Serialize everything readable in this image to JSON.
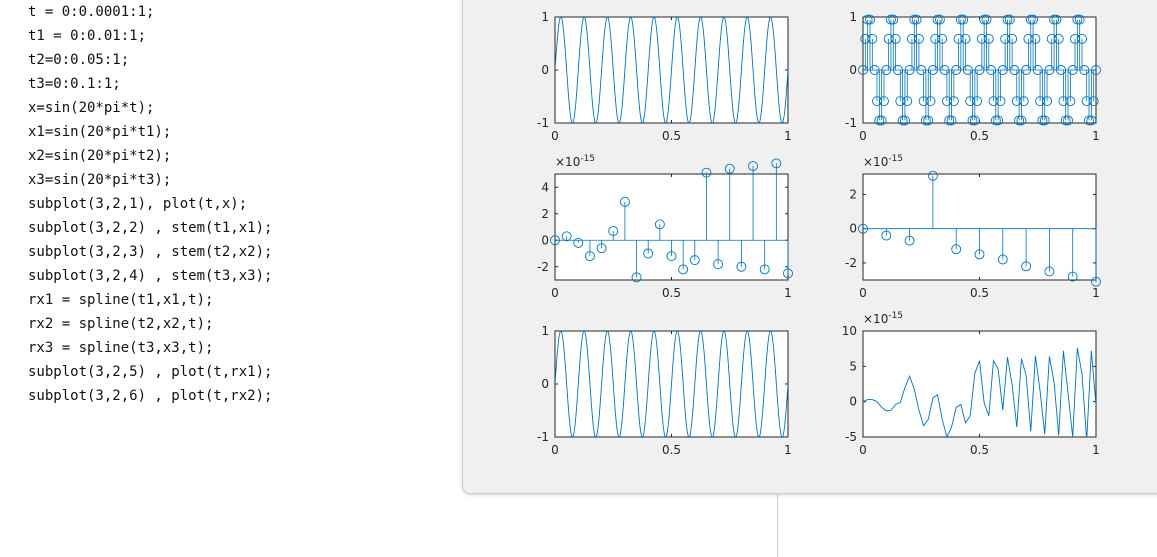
{
  "editor": {
    "lines": [
      "t = 0:0.0001:1;",
      "t1 = 0:0.01:1;",
      "t2=0:0.05:1;",
      "t3=0:0.1:1;",
      "x=sin(20*pi*t);",
      "x1=sin(20*pi*t1);",
      "x2=sin(20*pi*t2);",
      "x3=sin(20*pi*t3);",
      "subplot(3,2,1), plot(t,x);",
      "subplot(3,2,2) , stem(t1,x1);",
      "subplot(3,2,3) , stem(t2,x2);",
      "subplot(3,2,4) , stem(t3,x3);",
      "rx1 = spline(t1,x1,t);",
      "rx2 = spline(t2,x2,t);",
      "rx3 = spline(t3,x3,t);",
      "subplot(3,2,5) , plot(t,rx1);",
      "subplot(3,2,6) , plot(t,rx2);"
    ]
  },
  "figure": {
    "line_color": "#0072bd",
    "axes_background": "#ffffff",
    "window_background": "#f0f0f0"
  },
  "chart_data": [
    {
      "id": "plot1",
      "type": "line",
      "function": "sin(20*pi*x)",
      "x": {
        "start": 0,
        "end": 1,
        "step": 0.0001
      },
      "xlim": [
        0,
        1
      ],
      "ylim": [
        -1,
        1
      ],
      "xticks": [
        0,
        0.5,
        1
      ],
      "xticklabels": [
        "0",
        "0.5",
        "1"
      ],
      "yticks": [
        -1,
        0,
        1
      ],
      "yticklabels": [
        "-1",
        "0",
        "1"
      ],
      "exponent": ""
    },
    {
      "id": "plot2",
      "type": "stem",
      "x": [
        0,
        0.01,
        0.02,
        0.03,
        0.04,
        0.05,
        0.06,
        0.07,
        0.08,
        0.09,
        0.1,
        0.11,
        0.12,
        0.13,
        0.14,
        0.15,
        0.16,
        0.17,
        0.18,
        0.19,
        0.2,
        0.21,
        0.22,
        0.23,
        0.24,
        0.25,
        0.26,
        0.27,
        0.28,
        0.29,
        0.3,
        0.31,
        0.32,
        0.33,
        0.34,
        0.35,
        0.36,
        0.37,
        0.38,
        0.39,
        0.4,
        0.41,
        0.42,
        0.43,
        0.44,
        0.45,
        0.46,
        0.47,
        0.48,
        0.49,
        0.5,
        0.51,
        0.52,
        0.53,
        0.54,
        0.55,
        0.56,
        0.57,
        0.58,
        0.59,
        0.6,
        0.61,
        0.62,
        0.63,
        0.64,
        0.65,
        0.66,
        0.67,
        0.68,
        0.69,
        0.7,
        0.71,
        0.72,
        0.73,
        0.74,
        0.75,
        0.76,
        0.77,
        0.78,
        0.79,
        0.8,
        0.81,
        0.82,
        0.83,
        0.84,
        0.85,
        0.86,
        0.87,
        0.88,
        0.89,
        0.9,
        0.91,
        0.92,
        0.93,
        0.94,
        0.95,
        0.96,
        0.97,
        0.98,
        0.99,
        1
      ],
      "y": [
        0,
        0.5878,
        0.9511,
        0.9511,
        0.5878,
        0,
        -0.5878,
        -0.9511,
        -0.9511,
        -0.5878,
        0,
        0.5878,
        0.9511,
        0.9511,
        0.5878,
        0,
        -0.5878,
        -0.9511,
        -0.9511,
        -0.5878,
        0,
        0.5878,
        0.9511,
        0.9511,
        0.5878,
        0,
        -0.5878,
        -0.9511,
        -0.9511,
        -0.5878,
        0,
        0.5878,
        0.9511,
        0.9511,
        0.5878,
        0,
        -0.5878,
        -0.9511,
        -0.9511,
        -0.5878,
        0,
        0.5878,
        0.9511,
        0.9511,
        0.5878,
        0,
        -0.5878,
        -0.9511,
        -0.9511,
        -0.5878,
        0,
        0.5878,
        0.9511,
        0.9511,
        0.5878,
        0,
        -0.5878,
        -0.9511,
        -0.9511,
        -0.5878,
        0,
        0.5878,
        0.9511,
        0.9511,
        0.5878,
        0,
        -0.5878,
        -0.9511,
        -0.9511,
        -0.5878,
        0,
        0.5878,
        0.9511,
        0.9511,
        0.5878,
        0,
        -0.5878,
        -0.9511,
        -0.9511,
        -0.5878,
        0,
        0.5878,
        0.9511,
        0.9511,
        0.5878,
        0,
        -0.5878,
        -0.9511,
        -0.9511,
        -0.5878,
        0,
        0.5878,
        0.9511,
        0.9511,
        0.5878,
        0,
        -0.5878,
        -0.9511,
        -0.9511,
        -0.5878,
        0
      ],
      "xlim": [
        0,
        1
      ],
      "ylim": [
        -1,
        1
      ],
      "xticks": [
        0,
        0.5,
        1
      ],
      "xticklabels": [
        "0",
        "0.5",
        "1"
      ],
      "yticks": [
        -1,
        0,
        1
      ],
      "yticklabels": [
        "-1",
        "0",
        "1"
      ],
      "exponent": ""
    },
    {
      "id": "plot3",
      "type": "stem",
      "x": [
        0,
        0.05,
        0.1,
        0.15,
        0.2,
        0.25,
        0.3,
        0.35,
        0.4,
        0.45,
        0.5,
        0.55,
        0.6,
        0.65,
        0.7,
        0.75,
        0.8,
        0.85,
        0.9,
        0.95,
        1
      ],
      "y": [
        0,
        0.3,
        -0.2,
        -1.2,
        -0.6,
        0.7,
        2.9,
        -2.8,
        -1,
        1.2,
        -1.2,
        -2.2,
        -1.5,
        5.1,
        -1.8,
        5.4,
        -2,
        5.6,
        -2.2,
        5.8,
        -2.5
      ],
      "xlim": [
        0,
        1
      ],
      "ylim": [
        -3,
        5
      ],
      "xticks": [
        0,
        0.5,
        1
      ],
      "xticklabels": [
        "0",
        "0.5",
        "1"
      ],
      "yticks": [
        -2,
        0,
        2,
        4
      ],
      "yticklabels": [
        "-2",
        "0",
        "2",
        "4"
      ],
      "exponent": "×10",
      "exponent_power": "-15"
    },
    {
      "id": "plot4",
      "type": "stem",
      "x": [
        0,
        0.1,
        0.2,
        0.3,
        0.4,
        0.5,
        0.6,
        0.7,
        0.8,
        0.9,
        1
      ],
      "y": [
        0,
        -0.4,
        -0.7,
        3.1,
        -1.2,
        -1.5,
        -1.8,
        -2.2,
        -2.5,
        -2.8,
        -3.1
      ],
      "xlim": [
        0,
        1
      ],
      "ylim": [
        -3,
        3.2
      ],
      "xticks": [
        0,
        0.5,
        1
      ],
      "xticklabels": [
        "0",
        "0.5",
        "1"
      ],
      "yticks": [
        -2,
        0,
        2
      ],
      "yticklabels": [
        "-2",
        "0",
        "2"
      ],
      "exponent": "×10",
      "exponent_power": "-15"
    },
    {
      "id": "plot5",
      "type": "line",
      "function": "sin(20*pi*x)",
      "x": {
        "start": 0,
        "end": 1,
        "step": 0.0001
      },
      "xlim": [
        0,
        1
      ],
      "ylim": [
        -1,
        1
      ],
      "xticks": [
        0,
        0.5,
        1
      ],
      "xticklabels": [
        "0",
        "0.5",
        "1"
      ],
      "yticks": [
        -1,
        0,
        1
      ],
      "yticklabels": [
        "-1",
        "0",
        "1"
      ],
      "exponent": ""
    },
    {
      "id": "plot6",
      "type": "line",
      "x": [
        0,
        0.02,
        0.04,
        0.06,
        0.08,
        0.1,
        0.12,
        0.14,
        0.16,
        0.18,
        0.2,
        0.22,
        0.24,
        0.26,
        0.28,
        0.3,
        0.32,
        0.34,
        0.36,
        0.38,
        0.4,
        0.42,
        0.44,
        0.46,
        0.48,
        0.5,
        0.52,
        0.54,
        0.56,
        0.58,
        0.6,
        0.62,
        0.64,
        0.66,
        0.68,
        0.7,
        0.72,
        0.74,
        0.76,
        0.78,
        0.8,
        0.82,
        0.84,
        0.86,
        0.88,
        0.9,
        0.92,
        0.94,
        0.96,
        0.98,
        1
      ],
      "y": [
        0,
        0.3,
        0.3,
        0,
        -0.8,
        -1.3,
        -1.2,
        -0.4,
        -0.1,
        2,
        3.6,
        1.8,
        -1.2,
        -3.4,
        -2.5,
        0.5,
        1,
        -2.5,
        -5,
        -3.6,
        -0.8,
        -0.4,
        -3,
        -2,
        4,
        5.8,
        -0.2,
        -2,
        5.8,
        4.6,
        -1.2,
        6.3,
        2.4,
        -3.6,
        6.1,
        3.7,
        -4.2,
        6.5,
        1.5,
        -4.6,
        6.4,
        2.8,
        -4.8,
        7.2,
        1.2,
        -5,
        7.6,
        3.9,
        -5.5,
        7.2,
        -0.5
      ],
      "xlim": [
        0,
        1
      ],
      "ylim": [
        -5,
        10
      ],
      "xticks": [
        0,
        0.5,
        1
      ],
      "xticklabels": [
        "0",
        "0.5",
        "1"
      ],
      "yticks": [
        -5,
        0,
        5,
        10
      ],
      "yticklabels": [
        "-5",
        "0",
        "5",
        "10"
      ],
      "exponent": "×10",
      "exponent_power": "-15"
    }
  ]
}
